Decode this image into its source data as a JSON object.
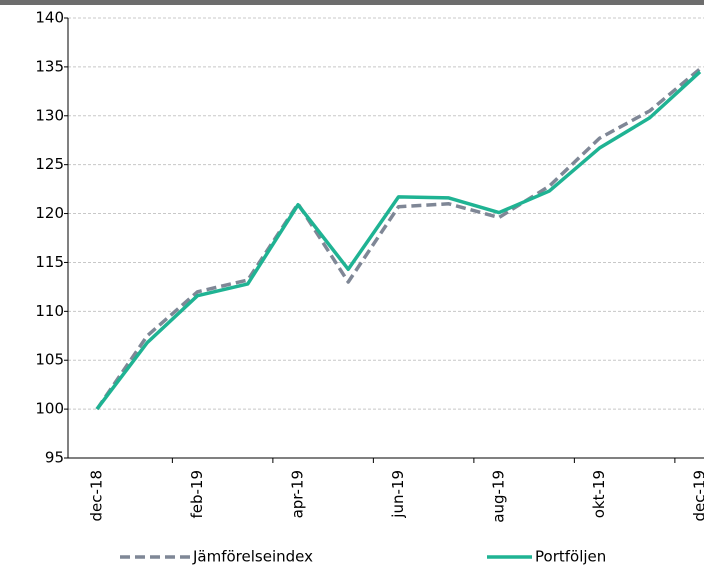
{
  "chart_data": {
    "type": "line",
    "categories": [
      "dec-18",
      null,
      "feb-19",
      null,
      "apr-19",
      null,
      "jun-19",
      null,
      "aug-19",
      null,
      "okt-19",
      null,
      "dec-19"
    ],
    "series": [
      {
        "name": "Jämförelseindex",
        "color": "#7f8796",
        "dashed": true,
        "values": [
          100,
          107.5,
          112,
          113.2,
          121,
          113,
          120.7,
          121,
          119.6,
          122.8,
          127.7,
          130.5,
          134.8
        ]
      },
      {
        "name": "Portföljen",
        "color": "#1fb393",
        "dashed": false,
        "values": [
          100,
          106.8,
          111.6,
          112.8,
          120.9,
          114.3,
          121.7,
          121.6,
          120.1,
          122.3,
          126.7,
          129.8,
          134.5
        ]
      }
    ],
    "ylim": [
      95,
      140
    ],
    "yticks": [
      95,
      100,
      105,
      110,
      115,
      120,
      125,
      130,
      135,
      140
    ],
    "grid": true,
    "legend": "bottom"
  }
}
